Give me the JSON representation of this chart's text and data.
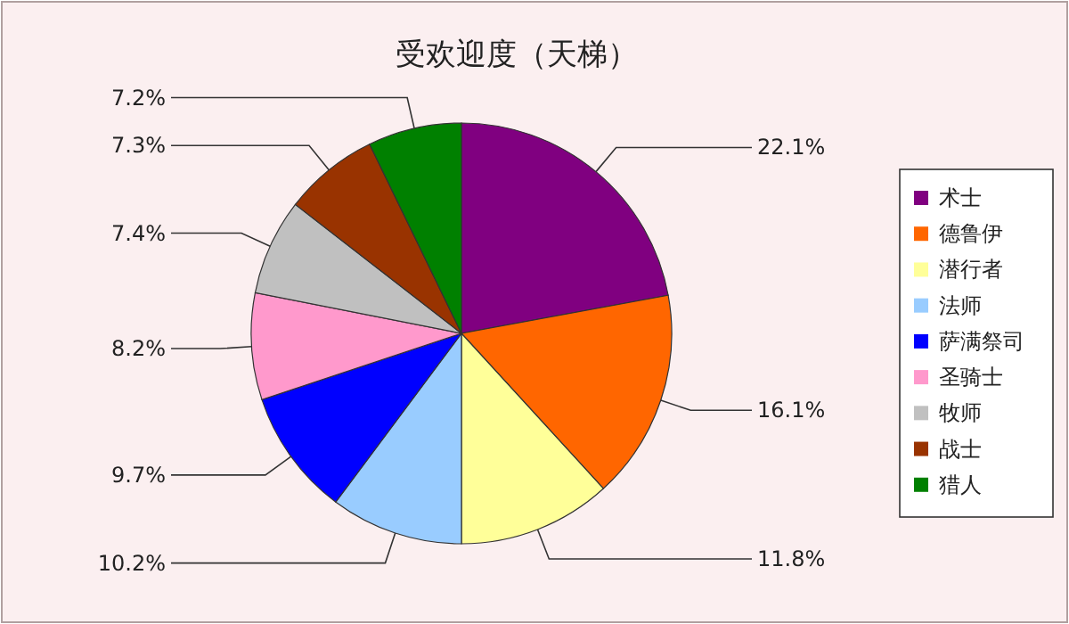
{
  "chart_data": {
    "type": "pie",
    "title": "受欢迎度（天梯）",
    "categories": [
      "术士",
      "德鲁伊",
      "潜行者",
      "法师",
      "萨满祭司",
      "圣骑士",
      "牧师",
      "战士",
      "猎人"
    ],
    "values": [
      22.1,
      16.1,
      11.8,
      10.2,
      9.7,
      8.2,
      7.4,
      7.3,
      7.2
    ],
    "value_labels": [
      "22.1%",
      "16.1%",
      "11.8%",
      "10.2%",
      "9.7%",
      "8.2%",
      "7.4%",
      "7.3%",
      "7.2%"
    ],
    "colors": [
      "#800080",
      "#ff6600",
      "#ffff99",
      "#99ccff",
      "#0000ff",
      "#ff99cc",
      "#c0c0c0",
      "#993300",
      "#008000"
    ],
    "legend": "right"
  }
}
